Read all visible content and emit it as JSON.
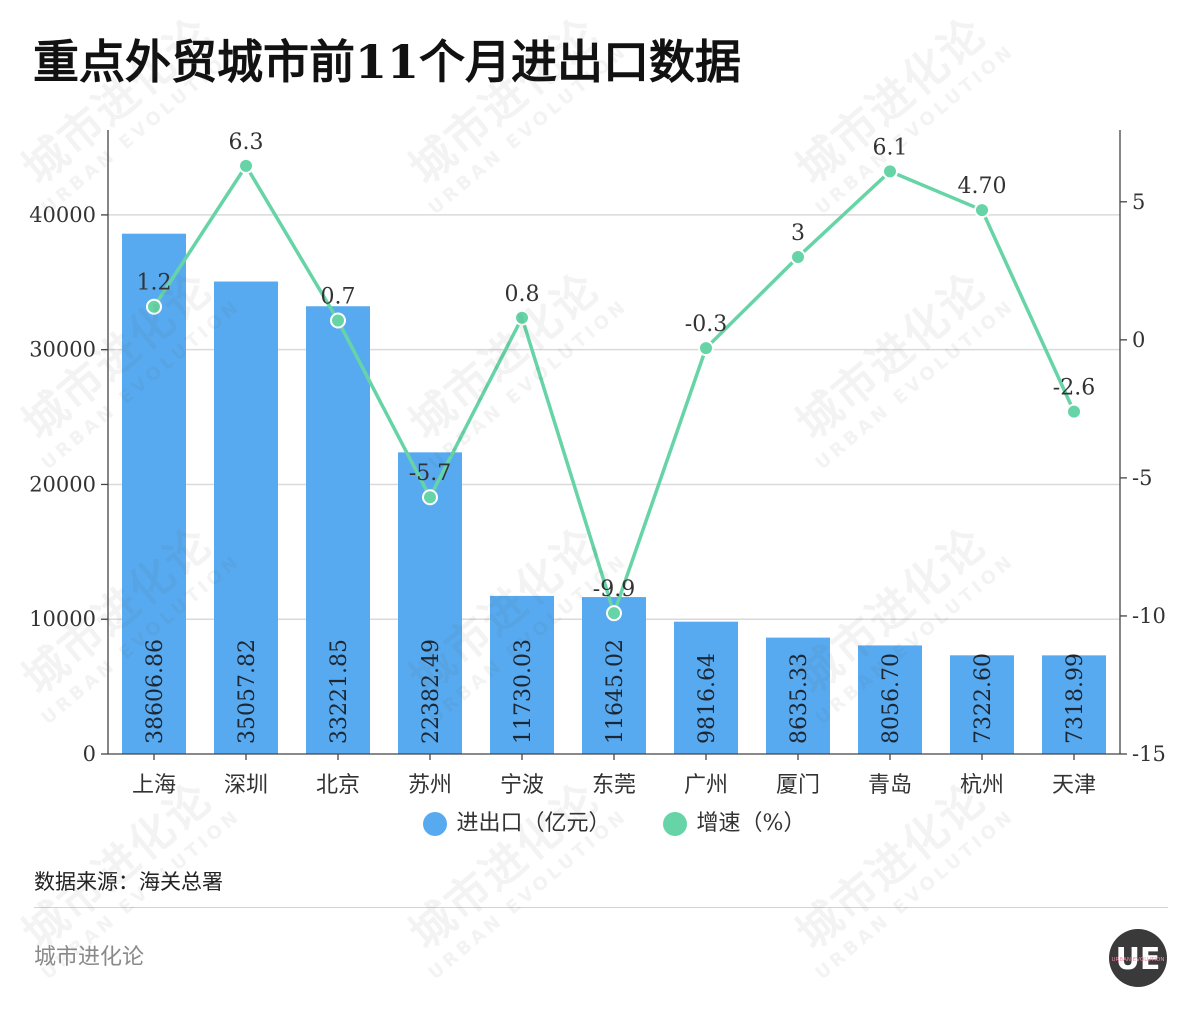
{
  "chart_data": {
    "type": "bar",
    "title": "重点外贸城市前11个月进出口数据",
    "categories": [
      "上海",
      "深圳",
      "北京",
      "苏州",
      "宁波",
      "东莞",
      "广州",
      "厦门",
      "青岛",
      "杭州",
      "天津"
    ],
    "series": [
      {
        "name": "进出口（亿元）",
        "type": "bar",
        "axis": "left",
        "color": "#58aaf0",
        "values": [
          38606.86,
          35057.82,
          33221.85,
          22382.49,
          11730.03,
          11645.02,
          9816.64,
          8635.33,
          8056.7,
          7322.6,
          7318.99
        ],
        "labels": [
          "38606.86",
          "35057.82",
          "33221.85",
          "22382.49",
          "11730.03",
          "11645.02",
          "9816.64",
          "8635.33",
          "8056.70",
          "7322.60",
          "7318.99"
        ]
      },
      {
        "name": "增速（%）",
        "type": "line",
        "axis": "right",
        "color": "#66d4a6",
        "values": [
          1.2,
          6.3,
          0.7,
          -5.7,
          0.8,
          -9.9,
          -0.3,
          3,
          6.1,
          4.7,
          -2.6
        ],
        "labels": [
          "1.2",
          "6.3",
          "0.7",
          "-5.7",
          "0.8",
          "-9.9",
          "-0.3",
          "3",
          "6.1",
          "4.70",
          "-2.6"
        ]
      }
    ],
    "y_left": {
      "ticks": [
        0,
        10000,
        20000,
        30000,
        40000
      ],
      "range": [
        0,
        46300
      ]
    },
    "y_right": {
      "ticks": [
        -15,
        -10,
        -5,
        0,
        5
      ],
      "range": [
        -15,
        7.6
      ]
    },
    "grid": true,
    "legend": "bottom"
  },
  "source": "数据来源：海关总署",
  "footer": "城市进化论",
  "logo": {
    "text": "UE",
    "subtext": "URBAN EVOLUTION"
  },
  "watermark": {
    "cn": "城市进化论",
    "en": "URBAN EVOLUTION"
  }
}
